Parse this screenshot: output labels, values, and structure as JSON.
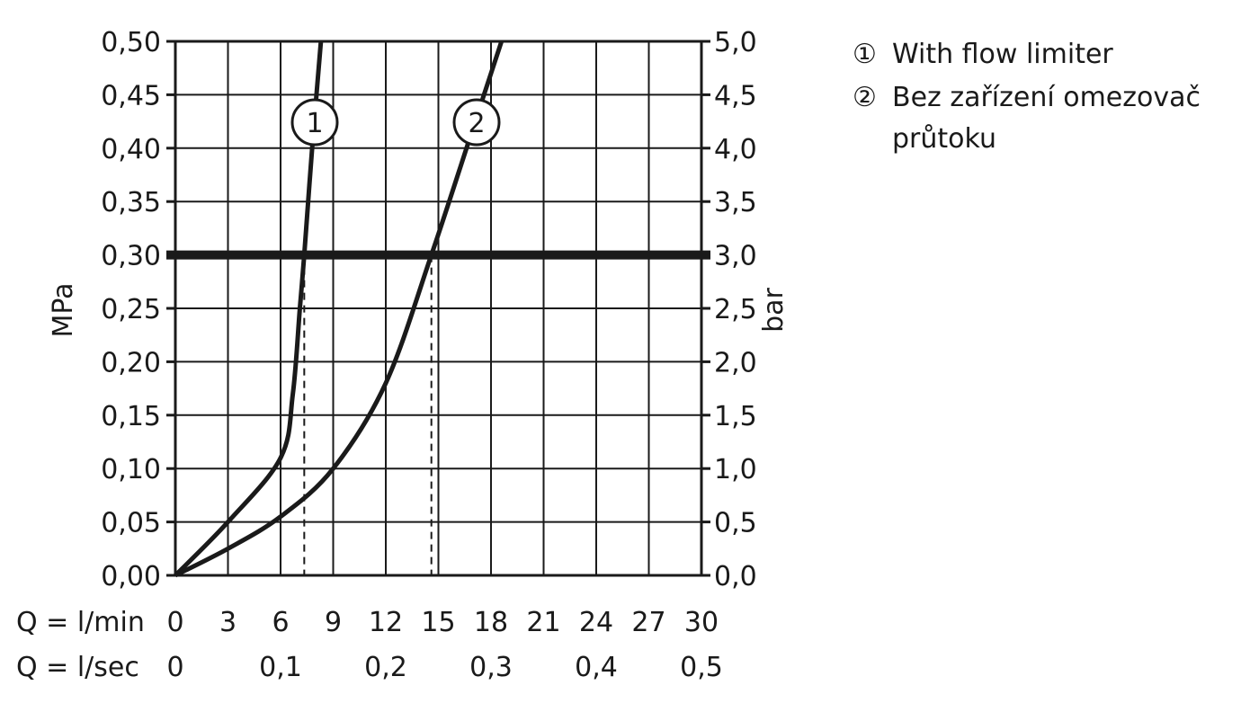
{
  "chart_data": {
    "type": "line",
    "left_axis": {
      "label": "MPa",
      "ylim": [
        0,
        0.5
      ],
      "ticks": [
        "0,00",
        "0,05",
        "0,10",
        "0,15",
        "0,20",
        "0,25",
        "0,30",
        "0,35",
        "0,40",
        "0,45",
        "0,50"
      ]
    },
    "right_axis": {
      "label": "bar",
      "ylim": [
        0,
        5
      ],
      "ticks": [
        "0,0",
        "0,5",
        "1,0",
        "1,5",
        "2,0",
        "2,5",
        "3,0",
        "3,5",
        "4,0",
        "4,5",
        "5,0"
      ]
    },
    "x_axis_lmin": {
      "label": "Q = l/min",
      "xlim": [
        0,
        30
      ],
      "ticks": [
        "0",
        "3",
        "6",
        "9",
        "12",
        "15",
        "18",
        "21",
        "24",
        "27",
        "30"
      ]
    },
    "x_axis_lsec": {
      "label": "Q = l/sec",
      "ticks": [
        "0",
        "0,1",
        "0,2",
        "0,3",
        "0,4",
        "0,5"
      ]
    },
    "grid": true,
    "reference_line": {
      "y": 0.3
    },
    "series": [
      {
        "marker": "1",
        "x": [
          0,
          3,
          6,
          6.7,
          7.1,
          7.35,
          7.8,
          8.3
        ],
        "y": [
          0,
          0.05,
          0.11,
          0.17,
          0.25,
          0.3,
          0.4,
          0.5
        ]
      },
      {
        "marker": "2",
        "x": [
          0,
          3,
          6,
          9,
          12,
          14.6,
          17,
          18.6
        ],
        "y": [
          0,
          0.025,
          0.055,
          0.1,
          0.18,
          0.3,
          0.42,
          0.5
        ]
      }
    ],
    "crossings": [
      {
        "x": 7.35,
        "y": 0.3
      },
      {
        "x": 14.6,
        "y": 0.3
      }
    ]
  },
  "legend": [
    {
      "marker": "①",
      "text": "With flow limiter"
    },
    {
      "marker": "②",
      "text": "Bez zařízení omezovač průtoku"
    }
  ]
}
